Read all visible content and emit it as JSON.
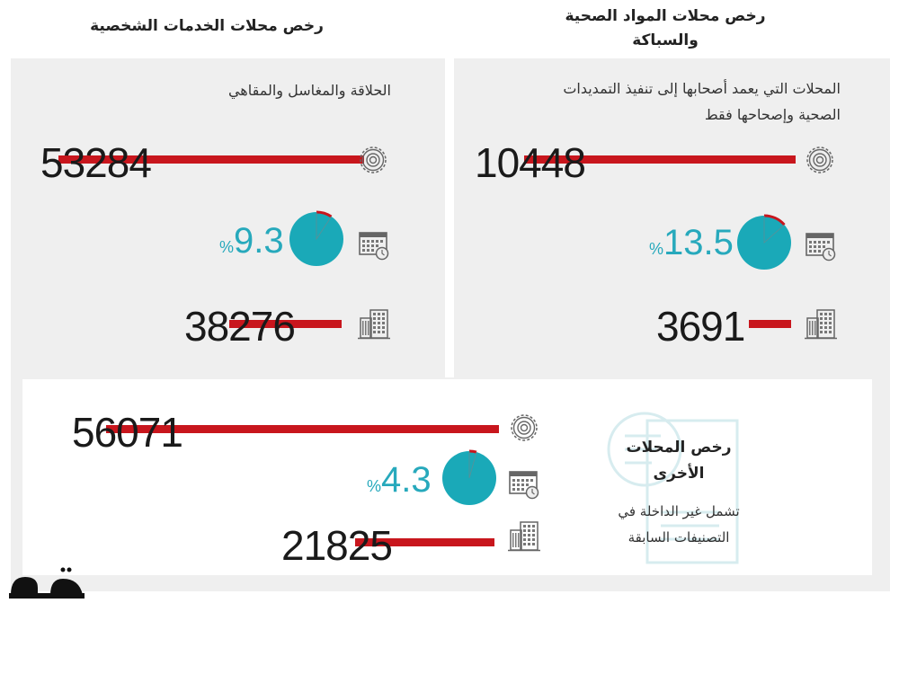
{
  "colors": {
    "bar": "#c8161d",
    "pie": "#1aa9b8",
    "percent_text": "#27a9bc",
    "panel": "#efefef"
  },
  "sections": {
    "personal_services": {
      "title": "رخص محلات الخدمات الشخصية",
      "subtitle": "الحلاقة والمغاسل والمقاهي",
      "total": "53284",
      "percent": "9.3",
      "percent_value": 9.3,
      "percent_sign": "%",
      "buildings": "38276"
    },
    "health_plumbing": {
      "title_line1": "رخص محلات المواد الصحية",
      "title_line2": "والسباكة",
      "subtitle_line1": "المحلات التي يعمد أصحابها إلى تنفيذ التمديدات",
      "subtitle_line2": "الصحية وإصحاحها فقط",
      "total": "10448",
      "percent": "13.5",
      "percent_value": 13.5,
      "percent_sign": "%",
      "buildings": "3691"
    },
    "other": {
      "title_line1": "رخص المحلات",
      "title_line2": "الأخرى",
      "desc_line1": "تشمل غير الداخلة في",
      "desc_line2": "التصنيفات السابقة",
      "total": "56071",
      "percent": "4.3",
      "percent_value": 4.3,
      "percent_sign": "%",
      "buildings": "21825"
    }
  },
  "logo": "مكة",
  "icons": [
    "gear-icon",
    "calendar-clock-icon",
    "building-icon",
    "document-license-icon"
  ]
}
